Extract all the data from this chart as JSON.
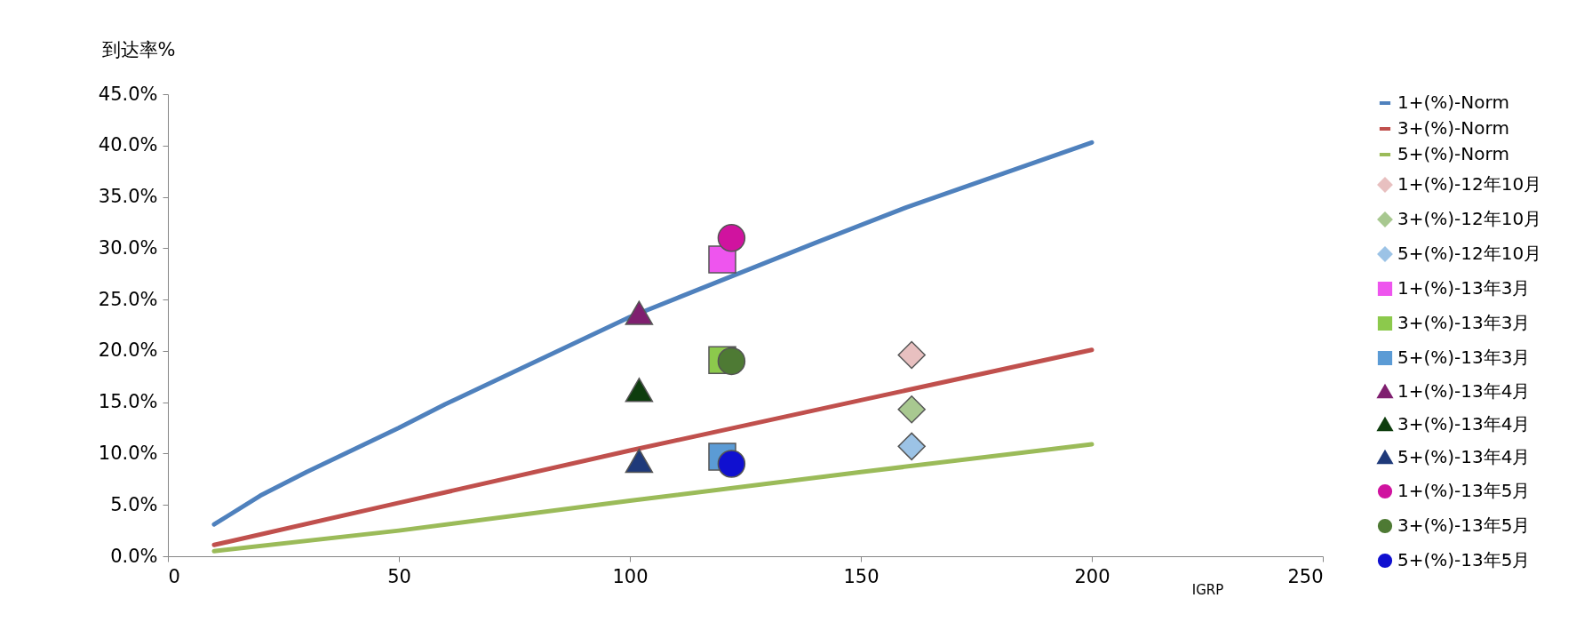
{
  "chart_data": {
    "type": "line",
    "xlabel": "IGRP",
    "ylabel": "到达率%",
    "xlim": [
      0,
      250
    ],
    "xticks": [
      0,
      50,
      100,
      150,
      200,
      250
    ],
    "ylim": [
      0,
      45
    ],
    "yticks": [
      {
        "value": 0,
        "label": "0.0%"
      },
      {
        "value": 5,
        "label": "5.0%"
      },
      {
        "value": 10,
        "label": "10.0%"
      },
      {
        "value": 15,
        "label": "15.0%"
      },
      {
        "value": 20,
        "label": "20.0%"
      },
      {
        "value": 25,
        "label": "25.0%"
      },
      {
        "value": 30,
        "label": "30.0%"
      },
      {
        "value": 35,
        "label": "35.0%"
      },
      {
        "value": 40,
        "label": "40.0%"
      },
      {
        "value": 45,
        "label": "45.0%"
      }
    ],
    "grid": false,
    "legend": "right",
    "series": [
      {
        "name": "1+(%)-Norm",
        "marker": "none",
        "color": "#4f81bd",
        "x": [
          10,
          20,
          30,
          50,
          60,
          100,
          140,
          160,
          200
        ],
        "values": [
          3.1,
          5.9,
          8.2,
          12.5,
          14.8,
          23.3,
          30.5,
          34,
          40.3
        ]
      },
      {
        "name": "3+(%)-Norm",
        "marker": "none",
        "color": "#c0504d",
        "x": [
          10,
          50,
          100,
          150,
          200
        ],
        "values": [
          1.1,
          5.2,
          10.3,
          15.2,
          20.1
        ]
      },
      {
        "name": "5+(%)-Norm",
        "marker": "none",
        "color": "#9bbb59",
        "x": [
          10,
          50,
          100,
          150,
          200
        ],
        "values": [
          0.5,
          2.5,
          5.4,
          8.2,
          10.9
        ]
      },
      {
        "name": "1+(%)-12年10月",
        "type": "scatter",
        "marker": "diamond",
        "color": "#e8c0c0",
        "x": [
          161
        ],
        "values": [
          19.6
        ]
      },
      {
        "name": "3+(%)-12年10月",
        "type": "scatter",
        "marker": "diamond",
        "color": "#a8c890",
        "x": [
          161
        ],
        "values": [
          14.3
        ]
      },
      {
        "name": "5+(%)-12年10月",
        "type": "scatter",
        "marker": "diamond",
        "color": "#9cc3e6",
        "x": [
          161
        ],
        "values": [
          10.7
        ]
      },
      {
        "name": "1+(%)-13年3月",
        "type": "scatter",
        "marker": "square",
        "color": "#ee55ee",
        "x": [
          120
        ],
        "values": [
          28.9
        ]
      },
      {
        "name": "3+(%)-13年3月",
        "type": "scatter",
        "marker": "square",
        "color": "#8cc94c",
        "x": [
          120
        ],
        "values": [
          19.1
        ]
      },
      {
        "name": "5+(%)-13年3月",
        "type": "scatter",
        "marker": "square",
        "color": "#5b9bd5",
        "x": [
          120
        ],
        "values": [
          9.7
        ]
      },
      {
        "name": "1+(%)-13年4月",
        "type": "scatter",
        "marker": "triangle",
        "color": "#7f1f6f",
        "x": [
          102
        ],
        "values": [
          23.7
        ]
      },
      {
        "name": "3+(%)-13年4月",
        "type": "scatter",
        "marker": "triangle",
        "color": "#0e3d0e",
        "x": [
          102
        ],
        "values": [
          16.2
        ]
      },
      {
        "name": "5+(%)-13年4月",
        "type": "scatter",
        "marker": "triangle",
        "color": "#1f3a7a",
        "x": [
          102
        ],
        "values": [
          9.3
        ]
      },
      {
        "name": "1+(%)-13年5月",
        "type": "scatter",
        "marker": "circle",
        "color": "#d0139f",
        "x": [
          122
        ],
        "values": [
          31.0
        ]
      },
      {
        "name": "3+(%)-13年5月",
        "type": "scatter",
        "marker": "circle",
        "color": "#4e7a34",
        "x": [
          122
        ],
        "values": [
          19.0
        ]
      },
      {
        "name": "5+(%)-13年5月",
        "type": "scatter",
        "marker": "circle",
        "color": "#1010d0",
        "x": [
          122
        ],
        "values": [
          9.0
        ]
      }
    ]
  }
}
